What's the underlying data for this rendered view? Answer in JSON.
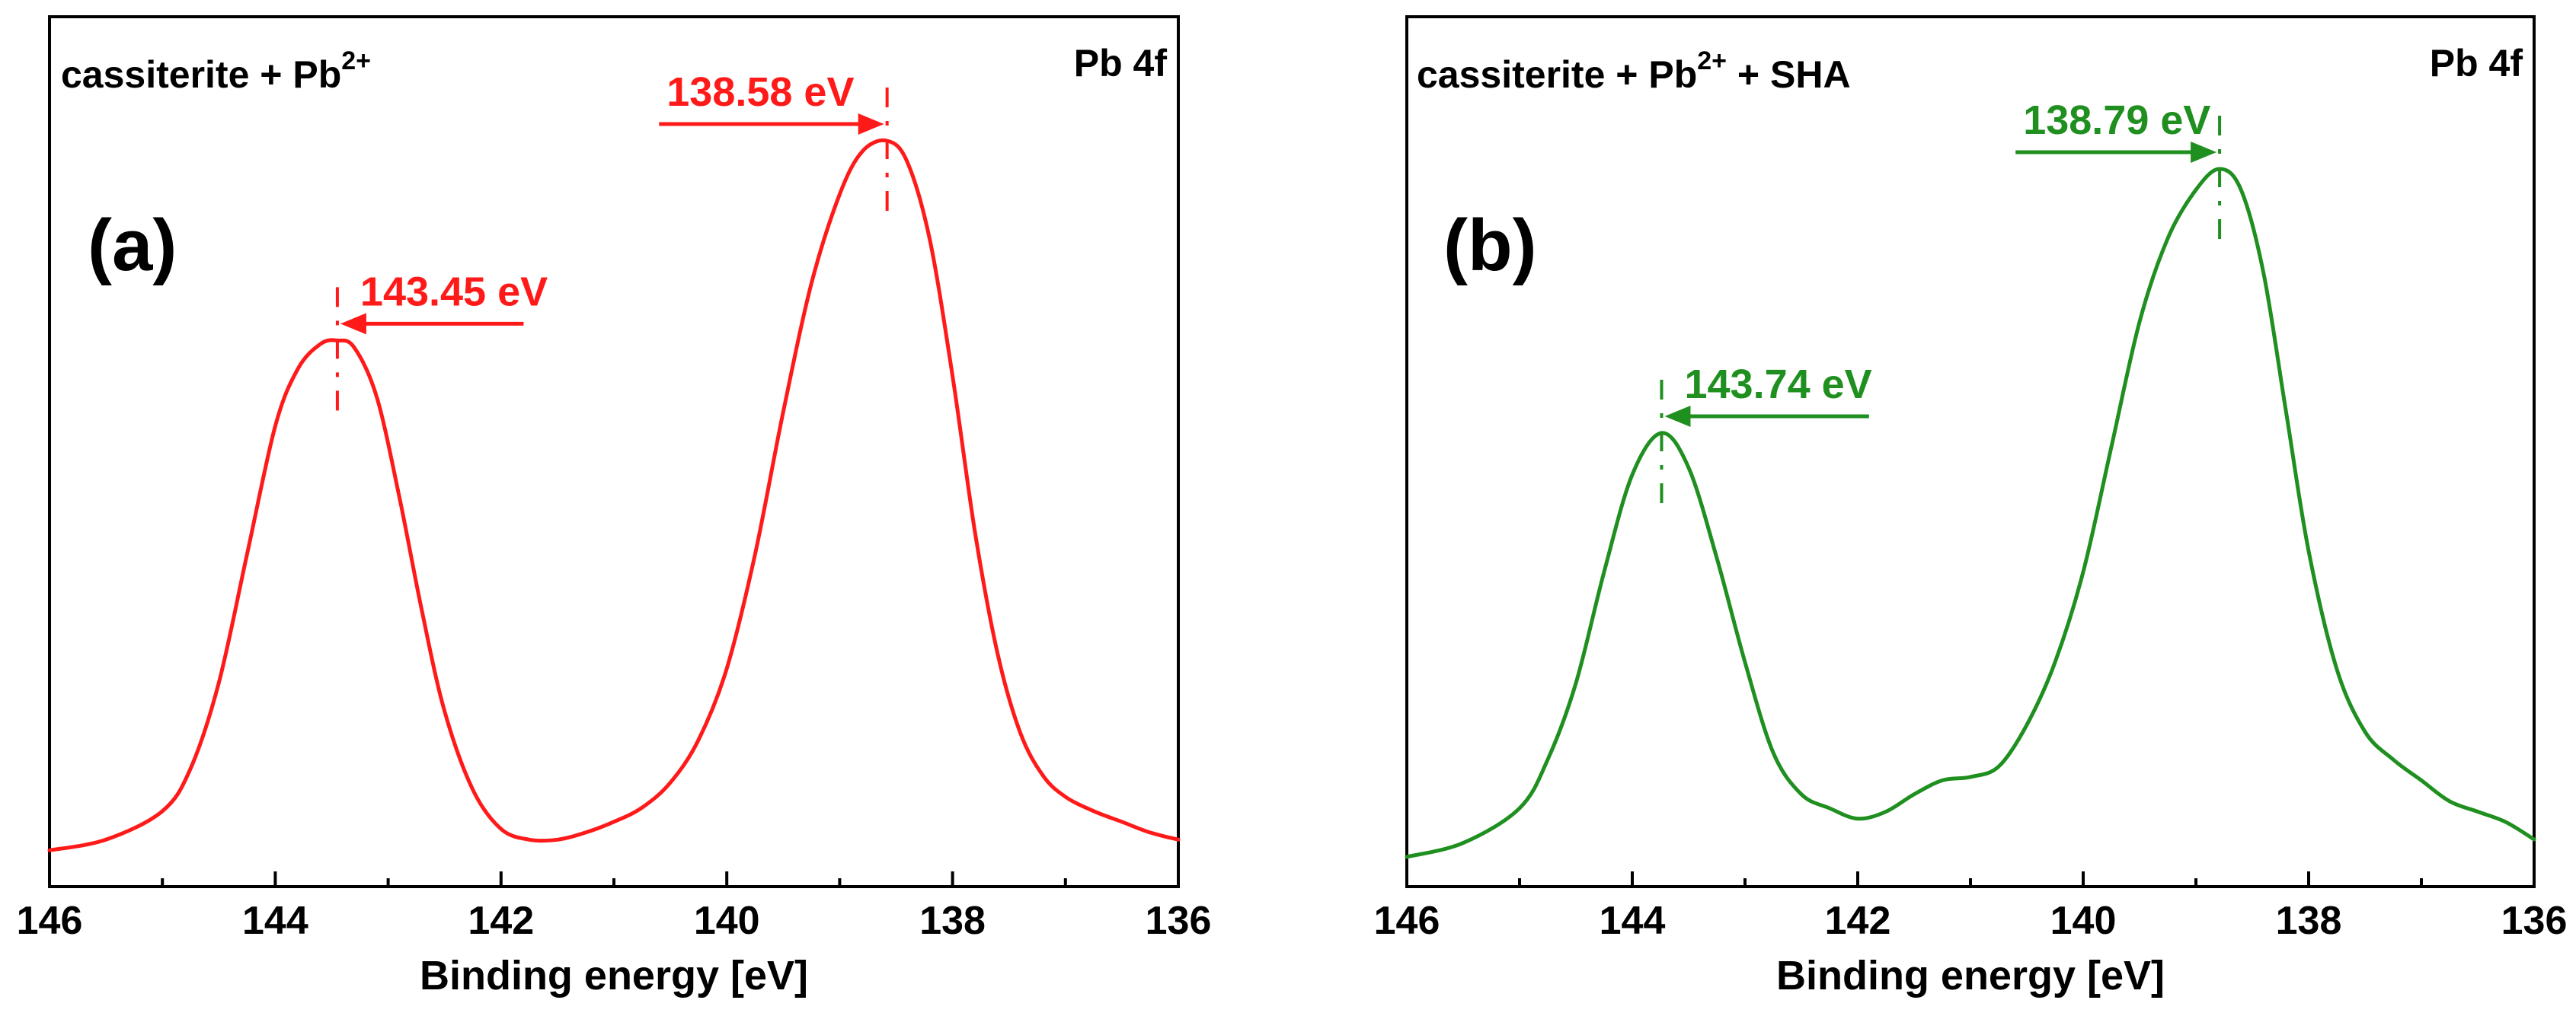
{
  "chart_data": [
    {
      "type": "line",
      "panel_label": "(a)",
      "title_left_prefix": "cassiterite + Pb",
      "title_left_sup": "2+",
      "title_left_suffix": "",
      "title_right": "Pb 4f",
      "xlabel": "Binding energy [eV]",
      "ylabel": "",
      "xlim": [
        146,
        136
      ],
      "ylim": [
        0,
        1
      ],
      "x_ticks": [
        146,
        144,
        142,
        140,
        138,
        136
      ],
      "y_ticks": [],
      "color": "#ff1a1a",
      "series": [
        {
          "name": "cassiterite + Pb2+",
          "x": [
            146.0,
            145.5,
            145.0,
            144.75,
            144.5,
            144.25,
            144.0,
            143.8,
            143.6,
            143.45,
            143.3,
            143.1,
            142.9,
            142.7,
            142.5,
            142.25,
            142.0,
            141.75,
            141.5,
            141.25,
            141.0,
            140.75,
            140.5,
            140.25,
            140.0,
            139.75,
            139.5,
            139.25,
            139.0,
            138.8,
            138.58,
            138.4,
            138.2,
            138.0,
            137.8,
            137.6,
            137.4,
            137.2,
            137.0,
            136.75,
            136.5,
            136.25,
            136.0
          ],
          "y": [
            0.005,
            0.02,
            0.06,
            0.12,
            0.24,
            0.42,
            0.6,
            0.68,
            0.715,
            0.72,
            0.71,
            0.64,
            0.5,
            0.34,
            0.2,
            0.09,
            0.035,
            0.02,
            0.02,
            0.03,
            0.045,
            0.065,
            0.1,
            0.16,
            0.26,
            0.42,
            0.62,
            0.8,
            0.925,
            0.985,
            1.0,
            0.97,
            0.86,
            0.67,
            0.45,
            0.28,
            0.17,
            0.11,
            0.08,
            0.06,
            0.045,
            0.03,
            0.02
          ]
        }
      ],
      "annotations": [
        {
          "text": "143.45 eV",
          "x": 143.45,
          "y": 0.72,
          "arrow_from_x": 141.8
        },
        {
          "text": "138.58 eV",
          "x": 138.58,
          "y": 1.0,
          "arrow_from_x": 140.6
        }
      ]
    },
    {
      "type": "line",
      "panel_label": "(b)",
      "title_left_prefix": "cassiterite + Pb",
      "title_left_sup": "2+",
      "title_left_suffix": " + SHA",
      "title_right": "Pb 4f",
      "xlabel": "Binding energy [eV]",
      "ylabel": "",
      "xlim": [
        146,
        136
      ],
      "ylim": [
        0,
        1
      ],
      "x_ticks": [
        146,
        144,
        142,
        140,
        138,
        136
      ],
      "y_ticks": [],
      "color": "#1f8f1f",
      "series": [
        {
          "name": "cassiterite + Pb2+ + SHA",
          "x": [
            146.0,
            145.5,
            145.0,
            144.75,
            144.5,
            144.25,
            144.0,
            143.74,
            143.5,
            143.25,
            143.0,
            142.75,
            142.5,
            142.25,
            142.0,
            141.75,
            141.5,
            141.25,
            141.0,
            140.75,
            140.5,
            140.25,
            140.0,
            139.75,
            139.5,
            139.25,
            139.0,
            138.79,
            138.6,
            138.4,
            138.2,
            138.0,
            137.75,
            137.5,
            137.25,
            137.0,
            136.75,
            136.5,
            136.25,
            136.0
          ],
          "y": [
            0.01,
            0.03,
            0.08,
            0.15,
            0.26,
            0.42,
            0.56,
            0.62,
            0.57,
            0.44,
            0.29,
            0.16,
            0.1,
            0.08,
            0.065,
            0.075,
            0.1,
            0.12,
            0.125,
            0.14,
            0.2,
            0.29,
            0.42,
            0.6,
            0.78,
            0.9,
            0.97,
            1.0,
            0.97,
            0.85,
            0.65,
            0.45,
            0.28,
            0.19,
            0.15,
            0.12,
            0.09,
            0.075,
            0.06,
            0.035
          ]
        }
      ],
      "annotations": [
        {
          "text": "143.74 eV",
          "x": 143.74,
          "y": 0.62,
          "arrow_from_x": 141.9
        },
        {
          "text": "138.79 eV",
          "x": 138.79,
          "y": 1.0,
          "arrow_from_x": 140.6
        }
      ]
    }
  ]
}
